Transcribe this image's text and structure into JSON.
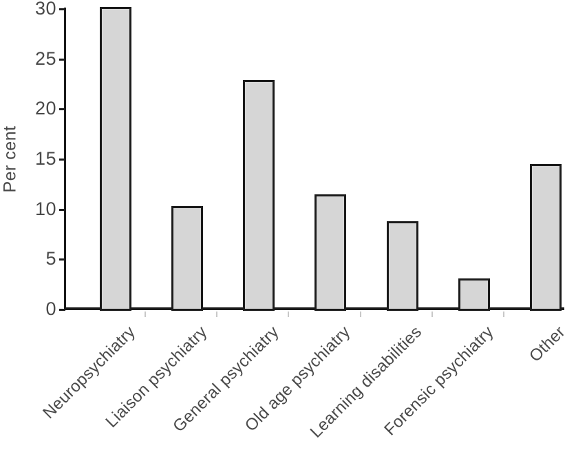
{
  "chart_data": {
    "type": "bar",
    "title": "",
    "xlabel": "",
    "ylabel": "Per cent",
    "categories": [
      "Neuropsychiatry",
      "Liaison psychiatry",
      "General psychiatry",
      "Old age psychiatry",
      "Learning disabilities",
      "Forensic psychiatry",
      "Other"
    ],
    "values": [
      30.2,
      10.3,
      22.9,
      11.5,
      8.8,
      3.1,
      14.5
    ],
    "ylim": [
      0,
      30
    ],
    "yticks": [
      0,
      5,
      10,
      15,
      20,
      25,
      30
    ],
    "grid": false,
    "legend": "none",
    "colors": {
      "bar_fill": "#d6d6d6",
      "bar_border": "#1b1b1b",
      "axis": "#1b1b1b",
      "text": "#4a4a4a",
      "minor_tick": "#c8c8c8"
    }
  }
}
